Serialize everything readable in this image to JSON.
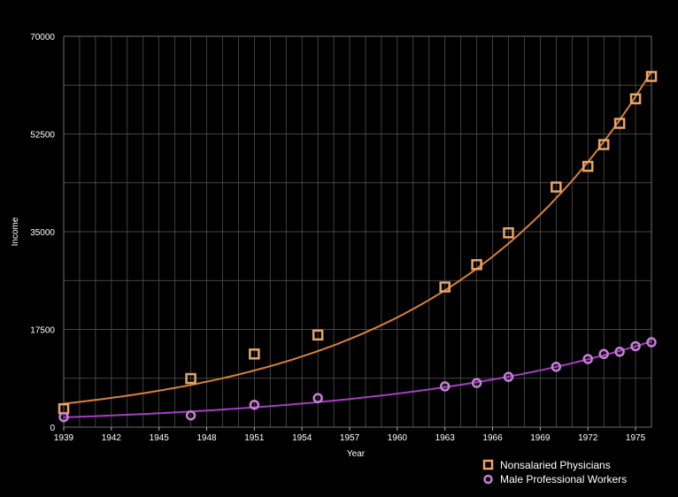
{
  "chart_data": {
    "type": "scatter",
    "xlabel": "Year",
    "ylabel": "Income",
    "xlim": [
      1939,
      1976
    ],
    "ylim": [
      0,
      70000
    ],
    "x_ticks": [
      "1939",
      "1942",
      "1945",
      "1948",
      "1951",
      "1954",
      "1957",
      "1960",
      "1963",
      "1966",
      "1969",
      "1972",
      "1975"
    ],
    "y_ticks": [
      "0",
      "17500",
      "35000",
      "52500",
      "70000"
    ],
    "grid": true,
    "legend_position": "bottom-right",
    "series": [
      {
        "name": "Nonsalaried Physicians",
        "color": "#e8a466",
        "line_color": "#d9803a",
        "marker": "square",
        "x": [
          1939,
          1947,
          1951,
          1955,
          1963,
          1965,
          1967,
          1970,
          1972,
          1973,
          1974,
          1975,
          1976
        ],
        "y": [
          3300,
          8700,
          13100,
          16500,
          25100,
          29100,
          34800,
          43000,
          46700,
          50600,
          54400,
          58800,
          62800
        ],
        "fit": {
          "a": 4200,
          "b": 0.0735
        }
      },
      {
        "name": "Male Professional Workers",
        "color": "#c77fd6",
        "line_color": "#a43fc2",
        "marker": "circle",
        "x": [
          1939,
          1947,
          1951,
          1955,
          1963,
          1965,
          1967,
          1970,
          1972,
          1973,
          1974,
          1975,
          1976
        ],
        "y": [
          1800,
          2100,
          4000,
          5200,
          7300,
          7900,
          9000,
          10800,
          12200,
          13100,
          13500,
          14500,
          15200
        ],
        "fit": {
          "a": 1750,
          "b": 0.0587
        }
      }
    ]
  }
}
